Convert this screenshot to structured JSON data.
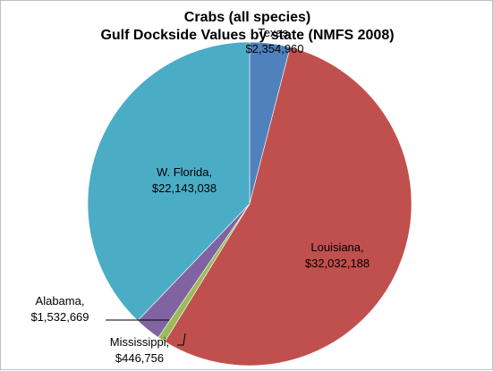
{
  "chart_data": {
    "type": "pie",
    "title_line1": "Crabs (all species)",
    "title_line2": "Gulf Dockside Values by state (NMFS 2008)",
    "start_angle_deg": 0,
    "slices": [
      {
        "name": "Texas",
        "label": "Texas,",
        "value_label": "$2,354,960",
        "value": 2354960,
        "color": "#4f81bd"
      },
      {
        "name": "Louisiana",
        "label": "Louisiana,",
        "value_label": "$32,032,188",
        "value": 32032188,
        "color": "#c0504d"
      },
      {
        "name": "Mississippi",
        "label": "Mississippi,",
        "value_label": "$446,756",
        "value": 446756,
        "color": "#9bbb59"
      },
      {
        "name": "Alabama",
        "label": "Alabama,",
        "value_label": "$1,532,669",
        "value": 1532669,
        "color": "#8064a2"
      },
      {
        "name": "W. Florida",
        "label": "W. Florida,",
        "value_label": "$22,143,038",
        "value": 22143038,
        "color": "#4bacc6"
      }
    ]
  }
}
